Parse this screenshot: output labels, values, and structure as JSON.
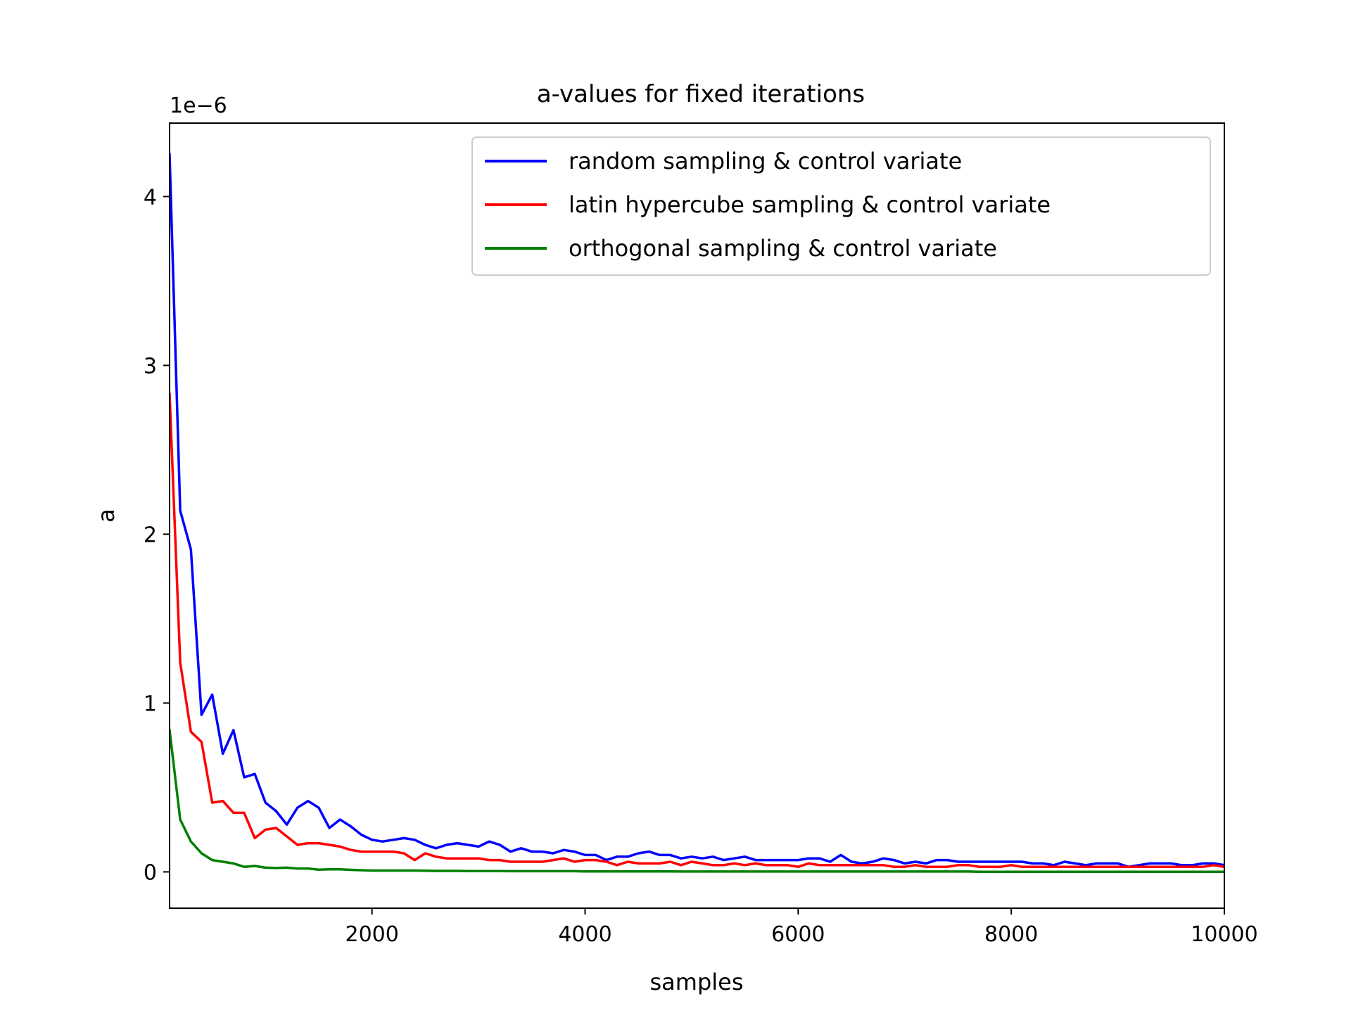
{
  "chart_data": {
    "type": "line",
    "title": "a-values for fixed iterations",
    "xlabel": "samples",
    "ylabel": "a",
    "y_offset_label": "1e−6",
    "xlim": [
      100,
      10000
    ],
    "ylim": [
      -2.15e-07,
      4.435e-06
    ],
    "x_ticks": [
      2000,
      4000,
      6000,
      8000,
      10000
    ],
    "x_tick_labels": [
      "2000",
      "4000",
      "6000",
      "8000",
      "10000"
    ],
    "y_ticks": [
      0,
      1e-06,
      2e-06,
      3e-06,
      4e-06
    ],
    "y_tick_labels": [
      "0",
      "1",
      "2",
      "3",
      "4"
    ],
    "grid": false,
    "legend_position": "top-right",
    "x": [
      100,
      200,
      300,
      400,
      500,
      600,
      700,
      800,
      900,
      1000,
      1100,
      1200,
      1300,
      1400,
      1500,
      1600,
      1700,
      1800,
      1900,
      2000,
      2100,
      2200,
      2300,
      2400,
      2500,
      2600,
      2700,
      2800,
      2900,
      3000,
      3100,
      3200,
      3300,
      3400,
      3500,
      3600,
      3700,
      3800,
      3900,
      4000,
      4100,
      4200,
      4300,
      4400,
      4500,
      4600,
      4700,
      4800,
      4900,
      5000,
      5100,
      5200,
      5300,
      5400,
      5500,
      5600,
      5700,
      5800,
      5900,
      6000,
      6100,
      6200,
      6300,
      6400,
      6500,
      6600,
      6700,
      6800,
      6900,
      7000,
      7100,
      7200,
      7300,
      7400,
      7500,
      7600,
      7700,
      7800,
      7900,
      8000,
      8100,
      8200,
      8300,
      8400,
      8500,
      8600,
      8700,
      8800,
      8900,
      9000,
      9100,
      9200,
      9300,
      9400,
      9500,
      9600,
      9700,
      9800,
      9900,
      10000
    ],
    "series": [
      {
        "name": "random sampling & control variate",
        "color": "#0000ff",
        "values": [
          4.25e-06,
          2.14e-06,
          1.91e-06,
          9.3e-07,
          1.05e-06,
          7e-07,
          8.4e-07,
          5.6e-07,
          5.8e-07,
          4.1e-07,
          3.6e-07,
          2.8e-07,
          3.8e-07,
          4.2e-07,
          3.8e-07,
          2.6e-07,
          3.1e-07,
          2.7e-07,
          2.2e-07,
          1.9e-07,
          1.8e-07,
          1.9e-07,
          2e-07,
          1.9e-07,
          1.6e-07,
          1.4e-07,
          1.6e-07,
          1.7e-07,
          1.6e-07,
          1.5e-07,
          1.8e-07,
          1.6e-07,
          1.2e-07,
          1.4e-07,
          1.2e-07,
          1.2e-07,
          1.1e-07,
          1.3e-07,
          1.2e-07,
          1e-07,
          1e-07,
          7e-08,
          9e-08,
          9e-08,
          1.1e-07,
          1.2e-07,
          1e-07,
          1e-07,
          8e-08,
          9e-08,
          8e-08,
          9e-08,
          7e-08,
          8e-08,
          9e-08,
          7e-08,
          7e-08,
          7e-08,
          7e-08,
          7e-08,
          8e-08,
          8e-08,
          6e-08,
          1e-07,
          6e-08,
          5e-08,
          6e-08,
          8e-08,
          7e-08,
          5e-08,
          6e-08,
          5e-08,
          7e-08,
          7e-08,
          6e-08,
          6e-08,
          6e-08,
          6e-08,
          6e-08,
          6e-08,
          6e-08,
          5e-08,
          5e-08,
          4e-08,
          6e-08,
          5e-08,
          4e-08,
          5e-08,
          5e-08,
          5e-08,
          3e-08,
          4e-08,
          5e-08,
          5e-08,
          5e-08,
          4e-08,
          4e-08,
          5e-08,
          5e-08,
          4e-08
        ]
      },
      {
        "name": "latin hypercube sampling & control variate",
        "color": "#ff0000",
        "values": [
          2.83e-06,
          1.24e-06,
          8.3e-07,
          7.7e-07,
          4.1e-07,
          4.2e-07,
          3.5e-07,
          3.5e-07,
          2e-07,
          2.5e-07,
          2.6e-07,
          2.1e-07,
          1.6e-07,
          1.7e-07,
          1.7e-07,
          1.6e-07,
          1.5e-07,
          1.3e-07,
          1.2e-07,
          1.2e-07,
          1.2e-07,
          1.2e-07,
          1.1e-07,
          7e-08,
          1.1e-07,
          9e-08,
          8e-08,
          8e-08,
          8e-08,
          8e-08,
          7e-08,
          7e-08,
          6e-08,
          6e-08,
          6e-08,
          6e-08,
          7e-08,
          8e-08,
          6e-08,
          7e-08,
          7e-08,
          6e-08,
          4e-08,
          6e-08,
          5e-08,
          5e-08,
          5e-08,
          6e-08,
          4e-08,
          6e-08,
          5e-08,
          4e-08,
          4e-08,
          5e-08,
          4e-08,
          5e-08,
          4e-08,
          4e-08,
          4e-08,
          3e-08,
          5e-08,
          4e-08,
          4e-08,
          4e-08,
          4e-08,
          4e-08,
          4e-08,
          4e-08,
          3e-08,
          3e-08,
          4e-08,
          3e-08,
          3e-08,
          3e-08,
          4e-08,
          4e-08,
          3e-08,
          3e-08,
          3e-08,
          4e-08,
          3e-08,
          3e-08,
          3e-08,
          3e-08,
          3e-08,
          3e-08,
          3e-08,
          3e-08,
          3e-08,
          3e-08,
          3e-08,
          3e-08,
          3e-08,
          3e-08,
          3e-08,
          3e-08,
          3e-08,
          3e-08,
          4e-08,
          3e-08
        ]
      },
      {
        "name": "orthogonal sampling & control variate",
        "color": "#008000",
        "values": [
          8.4e-07,
          3.1e-07,
          1.8e-07,
          1.1e-07,
          7e-08,
          6e-08,
          5e-08,
          3e-08,
          3.5e-08,
          2.5e-08,
          2.3e-08,
          2.5e-08,
          2e-08,
          2e-08,
          1.3e-08,
          1.5e-08,
          1.5e-08,
          1.2e-08,
          1e-08,
          8e-09,
          8e-09,
          8e-09,
          8e-09,
          8e-09,
          7e-09,
          6e-09,
          6e-09,
          6e-09,
          5e-09,
          5e-09,
          5e-09,
          5e-09,
          4e-09,
          4e-09,
          4e-09,
          4e-09,
          4e-09,
          4e-09,
          4e-09,
          3e-09,
          3e-09,
          3e-09,
          3e-09,
          3e-09,
          3e-09,
          3e-09,
          3e-09,
          3e-09,
          2e-09,
          2e-09,
          2e-09,
          2e-09,
          2e-09,
          2e-09,
          2e-09,
          2e-09,
          2e-09,
          2e-09,
          2e-09,
          2e-09,
          2e-09,
          2e-09,
          2e-09,
          2e-09,
          2e-09,
          2e-09,
          2e-09,
          2e-09,
          2e-09,
          2e-09,
          2e-09,
          2e-09,
          2e-09,
          2e-09,
          2e-09,
          2e-09,
          1e-09,
          1e-09,
          1e-09,
          1e-09,
          1e-09,
          1e-09,
          1e-09,
          1e-09,
          1e-09,
          1e-09,
          1e-09,
          1e-09,
          1e-09,
          1e-09,
          1e-09,
          1e-09,
          1e-09,
          1e-09,
          1e-09,
          1e-09,
          1e-09,
          1e-09,
          1e-09,
          1e-09
        ]
      }
    ]
  }
}
